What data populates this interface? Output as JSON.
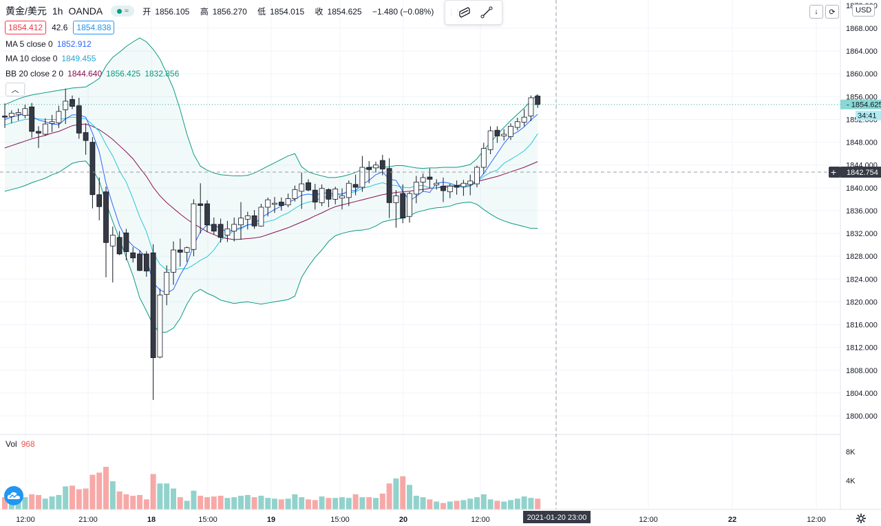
{
  "header": {
    "symbol": "黄金/美元",
    "timeframe": "1h",
    "source": "OANDA",
    "status_wave": "≈",
    "open_label": "开",
    "open": "1856.105",
    "high_label": "高",
    "high": "1856.270",
    "low_label": "低",
    "low": "1854.015",
    "close_label": "收",
    "close": "1854.625",
    "change": "−1.480 (−0.08%)"
  },
  "quote": {
    "sell": "1854.412",
    "spread": "42.6",
    "buy": "1854.838"
  },
  "indicators": {
    "ma5": {
      "label": "MA 5 close 0",
      "value": "1852.912"
    },
    "ma10": {
      "label": "MA 10 close 0",
      "value": "1849.455"
    },
    "bb": {
      "label": "BB 20 close 2 0",
      "basis": "1844.640",
      "upper": "1856.425",
      "lower": "1832.856"
    }
  },
  "scale": {
    "currency": "USD",
    "last_price": "1854.625",
    "countdown": "34:41",
    "crosshair_price": "1842.754",
    "top_price": "1872.000",
    "crosshair_time": "2021-01-20   23:00"
  },
  "volume": {
    "label": "Vol",
    "value": "968"
  },
  "colors": {
    "up": "#26a69a",
    "down": "#ef5350",
    "ma5": "#2962ff",
    "ma10": "#26c6da",
    "bb_basis": "#880e4f",
    "bb_band": "#089981"
  },
  "chart_data": {
    "type": "candlestick",
    "title": "黄金/美元 · 1h · OANDA",
    "ylim": [
      1798,
      1872
    ],
    "y_ticks": [
      1800,
      1804,
      1808,
      1812,
      1816,
      1820,
      1824,
      1828,
      1832,
      1836,
      1840,
      1844,
      1848,
      1852,
      1856,
      1860,
      1864,
      1868
    ],
    "x_ticks": [
      "12:00",
      "21:00",
      "18",
      "15:00",
      "19",
      "15:00",
      "20",
      "12:00",
      "",
      "12:00",
      "22",
      "12:00"
    ],
    "volume_ticks": [
      "4K",
      "8K"
    ],
    "candles": [
      {
        "o": 1852.6,
        "h": 1854.8,
        "l": 1850.5,
        "c": 1852.4
      },
      {
        "o": 1852.5,
        "h": 1853.6,
        "l": 1851.3,
        "c": 1853.1
      },
      {
        "o": 1852.9,
        "h": 1853.9,
        "l": 1851.8,
        "c": 1853.2
      },
      {
        "o": 1852.7,
        "h": 1854.6,
        "l": 1852.2,
        "c": 1853.9
      },
      {
        "o": 1854.2,
        "h": 1854.9,
        "l": 1848.8,
        "c": 1849.9
      },
      {
        "o": 1849.9,
        "h": 1850.8,
        "l": 1847.0,
        "c": 1849.6
      },
      {
        "o": 1849.4,
        "h": 1852.2,
        "l": 1849.1,
        "c": 1851.2
      },
      {
        "o": 1851.3,
        "h": 1852.8,
        "l": 1849.8,
        "c": 1851.6
      },
      {
        "o": 1851.4,
        "h": 1854.4,
        "l": 1850.5,
        "c": 1853.4
      },
      {
        "o": 1853.7,
        "h": 1857.4,
        "l": 1851.2,
        "c": 1855.2
      },
      {
        "o": 1855.5,
        "h": 1856.2,
        "l": 1853.8,
        "c": 1854.3
      },
      {
        "o": 1854.4,
        "h": 1855.8,
        "l": 1848.6,
        "c": 1849.6
      },
      {
        "o": 1849.7,
        "h": 1851.3,
        "l": 1845.8,
        "c": 1848.3
      },
      {
        "o": 1848.0,
        "h": 1848.9,
        "l": 1836.4,
        "c": 1838.8
      },
      {
        "o": 1838.8,
        "h": 1841.8,
        "l": 1834.3,
        "c": 1836.7
      },
      {
        "o": 1839.3,
        "h": 1840.2,
        "l": 1824.3,
        "c": 1830.4
      },
      {
        "o": 1829.8,
        "h": 1833.2,
        "l": 1823.4,
        "c": 1831.7
      },
      {
        "o": 1831.3,
        "h": 1832.4,
        "l": 1828.2,
        "c": 1828.4
      },
      {
        "o": 1832.1,
        "h": 1832.8,
        "l": 1827.3,
        "c": 1828.8
      },
      {
        "o": 1828.6,
        "h": 1829.6,
        "l": 1826.9,
        "c": 1827.7
      },
      {
        "o": 1828.4,
        "h": 1829.0,
        "l": 1825.4,
        "c": 1825.5
      },
      {
        "o": 1828.4,
        "h": 1828.9,
        "l": 1824.4,
        "c": 1825.4
      },
      {
        "o": 1828.6,
        "h": 1830.1,
        "l": 1802.8,
        "c": 1810.2
      },
      {
        "o": 1810.3,
        "h": 1822.3,
        "l": 1810.1,
        "c": 1821.2
      },
      {
        "o": 1821.3,
        "h": 1826.4,
        "l": 1819.4,
        "c": 1825.2
      },
      {
        "o": 1825.2,
        "h": 1830.6,
        "l": 1823.0,
        "c": 1829.1
      },
      {
        "o": 1829.1,
        "h": 1831.1,
        "l": 1826.2,
        "c": 1828.7
      },
      {
        "o": 1828.7,
        "h": 1829.7,
        "l": 1827.0,
        "c": 1829.5
      },
      {
        "o": 1829.2,
        "h": 1838.0,
        "l": 1828.0,
        "c": 1837.2
      },
      {
        "o": 1837.2,
        "h": 1840.8,
        "l": 1832.0,
        "c": 1836.9
      },
      {
        "o": 1837.2,
        "h": 1837.8,
        "l": 1832.2,
        "c": 1833.5
      },
      {
        "o": 1833.6,
        "h": 1834.8,
        "l": 1831.8,
        "c": 1832.4
      },
      {
        "o": 1833.6,
        "h": 1834.6,
        "l": 1830.4,
        "c": 1831.3
      },
      {
        "o": 1831.7,
        "h": 1834.2,
        "l": 1830.5,
        "c": 1832.8
      },
      {
        "o": 1832.4,
        "h": 1834.8,
        "l": 1830.6,
        "c": 1833.6
      },
      {
        "o": 1833.5,
        "h": 1837.5,
        "l": 1830.9,
        "c": 1834.7
      },
      {
        "o": 1834.5,
        "h": 1835.8,
        "l": 1832.7,
        "c": 1835.1
      },
      {
        "o": 1835.1,
        "h": 1836.1,
        "l": 1832.8,
        "c": 1833.3
      },
      {
        "o": 1833.3,
        "h": 1837.2,
        "l": 1833.2,
        "c": 1836.6
      },
      {
        "o": 1836.6,
        "h": 1838.3,
        "l": 1835.0,
        "c": 1837.9
      },
      {
        "o": 1837.1,
        "h": 1838.4,
        "l": 1835.6,
        "c": 1837.3
      },
      {
        "o": 1837.5,
        "h": 1838.3,
        "l": 1836.0,
        "c": 1836.9
      },
      {
        "o": 1837.0,
        "h": 1839.0,
        "l": 1836.6,
        "c": 1838.1
      },
      {
        "o": 1838.1,
        "h": 1840.4,
        "l": 1837.6,
        "c": 1839.7
      },
      {
        "o": 1839.4,
        "h": 1842.7,
        "l": 1836.3,
        "c": 1840.7
      },
      {
        "o": 1840.9,
        "h": 1841.5,
        "l": 1839.4,
        "c": 1839.6
      },
      {
        "o": 1839.6,
        "h": 1840.7,
        "l": 1836.2,
        "c": 1837.5
      },
      {
        "o": 1837.4,
        "h": 1840.6,
        "l": 1836.8,
        "c": 1839.9
      },
      {
        "o": 1839.7,
        "h": 1839.9,
        "l": 1836.6,
        "c": 1838.0
      },
      {
        "o": 1838.0,
        "h": 1840.2,
        "l": 1837.1,
        "c": 1839.8
      },
      {
        "o": 1838.2,
        "h": 1839.9,
        "l": 1836.2,
        "c": 1838.6
      },
      {
        "o": 1838.3,
        "h": 1841.3,
        "l": 1836.8,
        "c": 1840.8
      },
      {
        "o": 1840.6,
        "h": 1842.3,
        "l": 1838.7,
        "c": 1840.1
      },
      {
        "o": 1840.1,
        "h": 1845.6,
        "l": 1839.3,
        "c": 1843.6
      },
      {
        "o": 1843.6,
        "h": 1844.7,
        "l": 1840.8,
        "c": 1843.2
      },
      {
        "o": 1843.5,
        "h": 1844.6,
        "l": 1842.7,
        "c": 1844.0
      },
      {
        "o": 1844.8,
        "h": 1845.8,
        "l": 1842.2,
        "c": 1843.3
      },
      {
        "o": 1843.4,
        "h": 1845.2,
        "l": 1834.7,
        "c": 1837.4
      },
      {
        "o": 1837.4,
        "h": 1839.6,
        "l": 1833.0,
        "c": 1838.6
      },
      {
        "o": 1839.0,
        "h": 1840.6,
        "l": 1833.8,
        "c": 1834.7
      },
      {
        "o": 1835.0,
        "h": 1839.3,
        "l": 1833.9,
        "c": 1839.0
      },
      {
        "o": 1838.9,
        "h": 1842.1,
        "l": 1837.3,
        "c": 1841.0
      },
      {
        "o": 1841.0,
        "h": 1842.5,
        "l": 1839.3,
        "c": 1841.8
      },
      {
        "o": 1841.9,
        "h": 1843.4,
        "l": 1840.0,
        "c": 1841.5
      },
      {
        "o": 1840.5,
        "h": 1841.5,
        "l": 1839.7,
        "c": 1840.8
      },
      {
        "o": 1840.3,
        "h": 1841.8,
        "l": 1837.5,
        "c": 1839.5
      },
      {
        "o": 1839.3,
        "h": 1840.7,
        "l": 1838.2,
        "c": 1840.3
      },
      {
        "o": 1840.4,
        "h": 1841.3,
        "l": 1838.8,
        "c": 1840.1
      },
      {
        "o": 1840.2,
        "h": 1841.4,
        "l": 1838.6,
        "c": 1840.8
      },
      {
        "o": 1840.6,
        "h": 1842.3,
        "l": 1838.7,
        "c": 1841.2
      },
      {
        "o": 1840.7,
        "h": 1843.9,
        "l": 1840.1,
        "c": 1843.6
      },
      {
        "o": 1843.6,
        "h": 1847.9,
        "l": 1842.4,
        "c": 1846.9
      },
      {
        "o": 1846.7,
        "h": 1850.8,
        "l": 1845.9,
        "c": 1850.0
      },
      {
        "o": 1850.1,
        "h": 1850.8,
        "l": 1847.9,
        "c": 1849.1
      },
      {
        "o": 1849.1,
        "h": 1850.3,
        "l": 1848.3,
        "c": 1849.4
      },
      {
        "o": 1849.0,
        "h": 1851.3,
        "l": 1848.4,
        "c": 1850.8
      },
      {
        "o": 1850.6,
        "h": 1852.3,
        "l": 1850.1,
        "c": 1851.6
      },
      {
        "o": 1851.5,
        "h": 1853.8,
        "l": 1850.8,
        "c": 1852.4
      },
      {
        "o": 1852.6,
        "h": 1856.2,
        "l": 1851.7,
        "c": 1855.8
      },
      {
        "o": 1856.1,
        "h": 1856.3,
        "l": 1854.0,
        "c": 1854.6
      }
    ],
    "volumes": [
      1700,
      1600,
      1500,
      1700,
      2100,
      2000,
      1500,
      1800,
      2000,
      3200,
      3300,
      2800,
      2900,
      4800,
      5100,
      5900,
      3900,
      2500,
      2100,
      1900,
      2000,
      1400,
      4900,
      3600,
      3600,
      2900,
      1700,
      1200,
      2600,
      1900,
      1700,
      1800,
      1900,
      1600,
      1700,
      1900,
      2000,
      1700,
      1900,
      1600,
      1500,
      1400,
      1500,
      2100,
      1700,
      1400,
      1300,
      1800,
      1600,
      1600,
      1700,
      1600,
      2100,
      1700,
      1700,
      1600,
      2200,
      3600,
      4300,
      4600,
      3400,
      1900,
      1700,
      1400,
      1100,
      900,
      1100,
      1200,
      1300,
      1500,
      1700,
      2100,
      1400,
      1200,
      1100,
      1300,
      1500,
      1800,
      1600,
      1500
    ],
    "ma5": [
      1852.0,
      1852.4,
      1852.7,
      1853.0,
      1852.5,
      1851.9,
      1851.6,
      1851.2,
      1851.1,
      1852.1,
      1852.8,
      1852.8,
      1852.4,
      1849.6,
      1846.3,
      1840.8,
      1837.0,
      1833.4,
      1831.1,
      1829.8,
      1829.0,
      1827.7,
      1823.3,
      1822.1,
      1821.5,
      1822.2,
      1824.7,
      1826.7,
      1829.9,
      1832.3,
      1833.5,
      1833.4,
      1832.9,
      1832.2,
      1832.7,
      1833.0,
      1833.5,
      1833.7,
      1834.7,
      1835.5,
      1836.2,
      1836.8,
      1837.4,
      1838.0,
      1838.7,
      1838.9,
      1838.7,
      1839.1,
      1839.1,
      1838.9,
      1838.9,
      1839.5,
      1839.5,
      1840.6,
      1841.3,
      1842.3,
      1842.8,
      1841.5,
      1841.3,
      1839.4,
      1837.7,
      1838.5,
      1839.4,
      1839.2,
      1840.8,
      1841.0,
      1840.8,
      1840.4,
      1840.3,
      1840.4,
      1841.1,
      1842.5,
      1844.3,
      1846.0,
      1847.8,
      1849.2,
      1849.8,
      1850.7,
      1851.9,
      1852.9
    ],
    "ma10": [
      1851.0,
      1851.4,
      1851.7,
      1852.0,
      1852.1,
      1852.1,
      1852.0,
      1852.0,
      1852.0,
      1852.2,
      1852.4,
      1852.3,
      1852.1,
      1851.1,
      1849.9,
      1847.6,
      1845.6,
      1843.0,
      1841.0,
      1838.1,
      1834.9,
      1832.3,
      1828.6,
      1826.6,
      1825.6,
      1825.6,
      1825.8,
      1825.8,
      1826.5,
      1827.3,
      1827.9,
      1829.1,
      1830.8,
      1831.7,
      1832.5,
      1832.8,
      1833.5,
      1833.6,
      1833.8,
      1834.1,
      1834.4,
      1835.1,
      1835.6,
      1836.4,
      1837.1,
      1837.5,
      1837.7,
      1838.3,
      1838.5,
      1838.8,
      1838.9,
      1839.1,
      1839.3,
      1839.9,
      1840.2,
      1840.6,
      1840.9,
      1840.5,
      1840.4,
      1840.1,
      1840.0,
      1840.4,
      1840.4,
      1840.0,
      1840.0,
      1840.3,
      1840.5,
      1840.3,
      1840.1,
      1840.3,
      1841.0,
      1842.0,
      1842.7,
      1843.1,
      1844.3,
      1845.0,
      1845.7,
      1846.5,
      1847.7,
      1849.5
    ],
    "bb_basis": [
      1847.0,
      1847.4,
      1847.8,
      1848.2,
      1848.6,
      1848.9,
      1849.2,
      1849.6,
      1849.9,
      1850.4,
      1850.9,
      1851.1,
      1851.2,
      1850.8,
      1850.2,
      1849.4,
      1848.5,
      1847.4,
      1846.3,
      1845.1,
      1843.5,
      1842.0,
      1840.1,
      1838.6,
      1837.4,
      1836.4,
      1835.4,
      1834.5,
      1833.7,
      1833.0,
      1832.3,
      1831.8,
      1831.3,
      1831.1,
      1830.9,
      1831.0,
      1831.1,
      1831.2,
      1831.4,
      1831.8,
      1832.2,
      1832.6,
      1833.0,
      1833.5,
      1834.0,
      1834.5,
      1835.1,
      1835.6,
      1836.2,
      1836.7,
      1837.0,
      1837.3,
      1837.6,
      1837.9,
      1838.2,
      1838.5,
      1838.8,
      1839.0,
      1839.2,
      1839.3,
      1839.4,
      1839.6,
      1839.7,
      1839.9,
      1840.0,
      1840.1,
      1840.2,
      1840.4,
      1840.6,
      1840.8,
      1841.1,
      1841.4,
      1841.7,
      1842.0,
      1842.4,
      1842.8,
      1843.2,
      1843.6,
      1844.1,
      1844.6
    ],
    "bb_upper": [
      1854.6,
      1855.1,
      1855.6,
      1856.0,
      1856.3,
      1856.5,
      1856.7,
      1856.9,
      1857.1,
      1857.3,
      1857.5,
      1857.6,
      1857.7,
      1858.4,
      1859.2,
      1861.4,
      1862.9,
      1863.8,
      1864.8,
      1865.6,
      1866.3,
      1865.6,
      1864.3,
      1862.6,
      1860.1,
      1857.4,
      1853.7,
      1849.4,
      1845.9,
      1843.8,
      1843.1,
      1842.6,
      1842.3,
      1842.2,
      1842.1,
      1842.1,
      1842.2,
      1842.6,
      1843.2,
      1843.8,
      1844.4,
      1845.0,
      1845.6,
      1846.0,
      1843.7,
      1842.8,
      1842.4,
      1842.1,
      1841.8,
      1841.8,
      1842.0,
      1842.3,
      1842.7,
      1843.2,
      1843.6,
      1843.7,
      1843.6,
      1843.7,
      1843.9,
      1843.9,
      1843.7,
      1843.5,
      1843.4,
      1843.5,
      1843.5,
      1843.6,
      1843.6,
      1843.6,
      1843.8,
      1844.1,
      1845.1,
      1846.6,
      1848.0,
      1849.3,
      1850.6,
      1851.8,
      1852.9,
      1854.0,
      1855.3,
      1856.4
    ],
    "bb_lower": [
      1839.4,
      1839.7,
      1840.0,
      1840.4,
      1840.9,
      1841.3,
      1841.7,
      1842.3,
      1842.7,
      1843.5,
      1844.3,
      1844.6,
      1844.7,
      1843.2,
      1841.2,
      1837.4,
      1834.1,
      1831.0,
      1827.8,
      1824.6,
      1820.7,
      1818.4,
      1815.9,
      1814.6,
      1814.7,
      1815.4,
      1817.1,
      1819.6,
      1821.5,
      1822.2,
      1821.5,
      1821.0,
      1820.3,
      1820.0,
      1819.7,
      1819.9,
      1820.0,
      1819.8,
      1819.6,
      1819.8,
      1820.0,
      1820.2,
      1820.4,
      1821.0,
      1824.3,
      1826.2,
      1827.8,
      1829.1,
      1830.6,
      1831.6,
      1832.0,
      1832.3,
      1832.5,
      1832.6,
      1832.8,
      1833.3,
      1834.0,
      1834.3,
      1834.5,
      1834.7,
      1835.1,
      1835.7,
      1836.0,
      1836.3,
      1836.5,
      1836.6,
      1836.8,
      1837.2,
      1837.4,
      1837.5,
      1837.1,
      1836.2,
      1835.4,
      1834.7,
      1834.2,
      1833.8,
      1833.5,
      1833.2,
      1832.9,
      1832.9
    ]
  }
}
